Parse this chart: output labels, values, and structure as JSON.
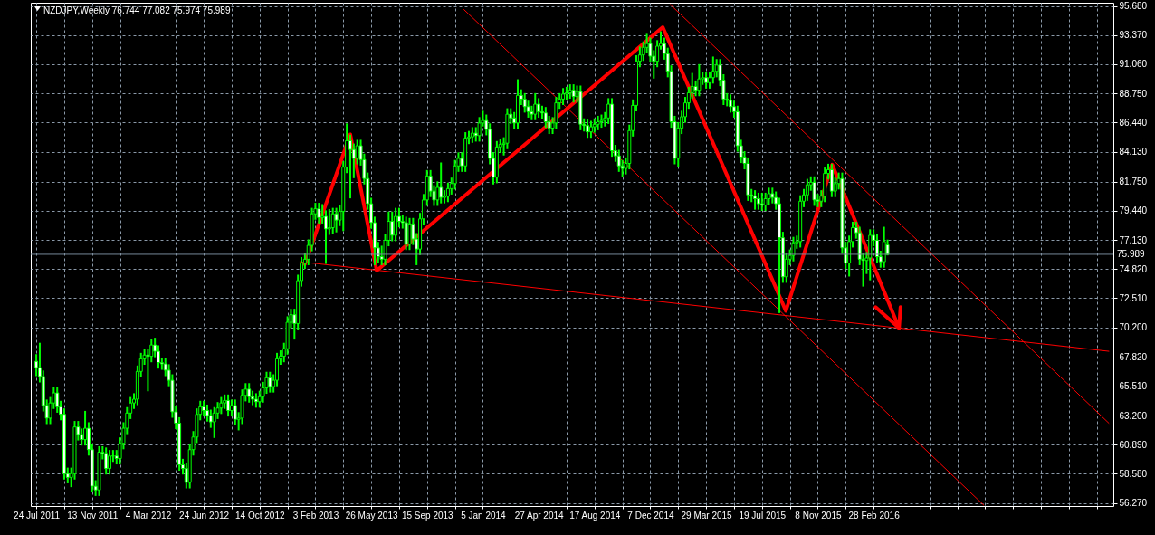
{
  "chart_data": {
    "type": "candlestick",
    "title": "NZDJPY,Weekly 76.744 77.082 75.974 75.989",
    "color": "#00ff00",
    "x": [
      "2011-07-24",
      "2011-07-31",
      "2011-08-07",
      "2011-08-14",
      "2011-08-21",
      "2011-08-28",
      "2011-09-04",
      "2011-09-11",
      "2011-09-18",
      "2011-09-25",
      "2011-10-02",
      "2011-10-09",
      "2011-10-16",
      "2011-10-23",
      "2011-10-30",
      "2011-11-06",
      "2011-11-13",
      "2011-11-20",
      "2011-11-27",
      "2011-12-04",
      "2011-12-11",
      "2011-12-18",
      "2011-12-25",
      "2012-01-01",
      "2012-01-08",
      "2012-01-15",
      "2012-01-22",
      "2012-01-29",
      "2012-02-05",
      "2012-02-12",
      "2012-02-19",
      "2012-02-26",
      "2012-03-04",
      "2012-03-11",
      "2012-03-18",
      "2012-03-25",
      "2012-04-01",
      "2012-04-08",
      "2012-04-15",
      "2012-04-22",
      "2012-04-29",
      "2012-05-06",
      "2012-05-13",
      "2012-05-20",
      "2012-05-27",
      "2012-06-03",
      "2012-06-10",
      "2012-06-17",
      "2012-06-24",
      "2012-07-01",
      "2012-07-08",
      "2012-07-15",
      "2012-07-22",
      "2012-07-29",
      "2012-08-05",
      "2012-08-12",
      "2012-08-19",
      "2012-08-26",
      "2012-09-02",
      "2012-09-09",
      "2012-09-16",
      "2012-09-23",
      "2012-09-30",
      "2012-10-07",
      "2012-10-14",
      "2012-10-21",
      "2012-10-28",
      "2012-11-04",
      "2012-11-11",
      "2012-11-18",
      "2012-11-25",
      "2012-12-02",
      "2012-12-09",
      "2012-12-16",
      "2012-12-23",
      "2012-12-30",
      "2013-01-06",
      "2013-01-13",
      "2013-01-20",
      "2013-01-27",
      "2013-02-03",
      "2013-02-10",
      "2013-02-17",
      "2013-02-24",
      "2013-03-03",
      "2013-03-10",
      "2013-03-17",
      "2013-03-24",
      "2013-03-31",
      "2013-04-07",
      "2013-04-14",
      "2013-04-21",
      "2013-04-28",
      "2013-05-05",
      "2013-05-12",
      "2013-05-19",
      "2013-05-26",
      "2013-06-02",
      "2013-06-09",
      "2013-06-16",
      "2013-06-23",
      "2013-06-30",
      "2013-07-07",
      "2013-07-14",
      "2013-07-21",
      "2013-07-28",
      "2013-08-04",
      "2013-08-11",
      "2013-08-18",
      "2013-08-25",
      "2013-09-01",
      "2013-09-08",
      "2013-09-15",
      "2013-09-22",
      "2013-09-29",
      "2013-10-06",
      "2013-10-13",
      "2013-10-20",
      "2013-10-27",
      "2013-11-03",
      "2013-11-10",
      "2013-11-17",
      "2013-11-24",
      "2013-12-01",
      "2013-12-08",
      "2013-12-15",
      "2013-12-22",
      "2013-12-29",
      "2014-01-05",
      "2014-01-12",
      "2014-01-19",
      "2014-01-26",
      "2014-02-02",
      "2014-02-09",
      "2014-02-16",
      "2014-02-23",
      "2014-03-02",
      "2014-03-09",
      "2014-03-16",
      "2014-03-23",
      "2014-03-30",
      "2014-04-06",
      "2014-04-13",
      "2014-04-20",
      "2014-04-27",
      "2014-05-04",
      "2014-05-11",
      "2014-05-18",
      "2014-05-25",
      "2014-06-01",
      "2014-06-08",
      "2014-06-15",
      "2014-06-22",
      "2014-06-29",
      "2014-07-06",
      "2014-07-13",
      "2014-07-20",
      "2014-07-27",
      "2014-08-03",
      "2014-08-10",
      "2014-08-17",
      "2014-08-24",
      "2014-08-31",
      "2014-09-07",
      "2014-09-14",
      "2014-09-21",
      "2014-09-28",
      "2014-10-05",
      "2014-10-12",
      "2014-10-19",
      "2014-10-26",
      "2014-11-02",
      "2014-11-09",
      "2014-11-16",
      "2014-11-23",
      "2014-11-30",
      "2014-12-07",
      "2014-12-14",
      "2014-12-21",
      "2014-12-28",
      "2015-01-04",
      "2015-01-11",
      "2015-01-18",
      "2015-01-25",
      "2015-02-01",
      "2015-02-08",
      "2015-02-15",
      "2015-02-22",
      "2015-03-01",
      "2015-03-08",
      "2015-03-15",
      "2015-03-22",
      "2015-03-29",
      "2015-04-05",
      "2015-04-12",
      "2015-04-19",
      "2015-04-26",
      "2015-05-03",
      "2015-05-10",
      "2015-05-17",
      "2015-05-24",
      "2015-05-31",
      "2015-06-07",
      "2015-06-14",
      "2015-06-21",
      "2015-06-28",
      "2015-07-05",
      "2015-07-12",
      "2015-07-19",
      "2015-07-26",
      "2015-08-02",
      "2015-08-09",
      "2015-08-16",
      "2015-08-23",
      "2015-08-30",
      "2015-09-06",
      "2015-09-13",
      "2015-09-20",
      "2015-09-27",
      "2015-10-04",
      "2015-10-11",
      "2015-10-18",
      "2015-10-25",
      "2015-11-01",
      "2015-11-08",
      "2015-11-15",
      "2015-11-22",
      "2015-11-29",
      "2015-12-06",
      "2015-12-13",
      "2015-12-20",
      "2015-12-27",
      "2016-01-03",
      "2016-01-10",
      "2016-01-17",
      "2016-01-24",
      "2016-01-31",
      "2016-02-07",
      "2016-02-14",
      "2016-02-21",
      "2016-02-28",
      "2016-03-06",
      "2016-03-13",
      "2016-03-20",
      "2016-03-27"
    ],
    "ohlc": [
      [
        67.5,
        68.0,
        66.4,
        67.0
      ],
      [
        67.0,
        68.9,
        65.9,
        66.3
      ],
      [
        66.3,
        66.7,
        63.6,
        64.0
      ],
      [
        64.0,
        64.4,
        62.6,
        63.0
      ],
      [
        63.0,
        64.6,
        62.6,
        64.2
      ],
      [
        64.2,
        65.4,
        63.8,
        65.0
      ],
      [
        65.0,
        65.4,
        63.5,
        63.9
      ],
      [
        63.9,
        64.3,
        62.9,
        63.3
      ],
      [
        63.3,
        63.7,
        58.2,
        58.6
      ],
      [
        58.6,
        59.0,
        57.9,
        58.3
      ],
      [
        58.3,
        59.0,
        57.6,
        58.6
      ],
      [
        58.6,
        62.7,
        58.2,
        62.3
      ],
      [
        62.3,
        62.7,
        61.3,
        61.7
      ],
      [
        61.7,
        62.1,
        60.9,
        61.3
      ],
      [
        61.3,
        63.5,
        60.9,
        62.2
      ],
      [
        62.2,
        62.6,
        60.1,
        60.5
      ],
      [
        60.5,
        60.9,
        57.2,
        57.6
      ],
      [
        57.6,
        58.0,
        56.9,
        57.3
      ],
      [
        57.3,
        60.7,
        56.9,
        60.3
      ],
      [
        60.3,
        60.7,
        59.8,
        60.2
      ],
      [
        60.2,
        60.6,
        58.6,
        59.0
      ],
      [
        59.0,
        60.4,
        58.6,
        60.0
      ],
      [
        60.0,
        60.4,
        59.6,
        60.0
      ],
      [
        60.0,
        60.4,
        59.4,
        59.8
      ],
      [
        59.8,
        61.4,
        59.4,
        61.0
      ],
      [
        61.0,
        62.6,
        60.6,
        62.2
      ],
      [
        62.2,
        63.8,
        61.8,
        63.4
      ],
      [
        63.4,
        64.6,
        63.0,
        64.2
      ],
      [
        64.2,
        64.9,
        63.8,
        64.5
      ],
      [
        64.5,
        67.1,
        64.1,
        66.7
      ],
      [
        66.7,
        68.1,
        66.3,
        67.7
      ],
      [
        67.7,
        68.4,
        67.3,
        68.0
      ],
      [
        68.0,
        68.4,
        65.2,
        67.9
      ],
      [
        67.9,
        69.2,
        67.5,
        68.8
      ],
      [
        68.8,
        69.3,
        67.9,
        68.3
      ],
      [
        68.3,
        68.7,
        67.0,
        67.4
      ],
      [
        67.4,
        67.7,
        66.9,
        67.3
      ],
      [
        67.3,
        67.7,
        66.4,
        66.8
      ],
      [
        66.8,
        67.2,
        65.6,
        66.0
      ],
      [
        66.0,
        66.4,
        63.1,
        63.5
      ],
      [
        63.5,
        63.9,
        62.2,
        62.6
      ],
      [
        62.6,
        63.0,
        58.9,
        59.3
      ],
      [
        59.3,
        59.7,
        58.6,
        59.0
      ],
      [
        59.0,
        59.4,
        57.5,
        57.9
      ],
      [
        57.9,
        60.9,
        57.5,
        60.5
      ],
      [
        60.5,
        61.9,
        60.1,
        61.5
      ],
      [
        61.5,
        63.7,
        61.1,
        63.3
      ],
      [
        63.3,
        64.3,
        62.9,
        63.9
      ],
      [
        63.9,
        64.3,
        63.2,
        63.6
      ],
      [
        63.6,
        64.0,
        62.8,
        63.2
      ],
      [
        63.2,
        63.6,
        62.3,
        62.7
      ],
      [
        62.7,
        63.8,
        61.5,
        63.4
      ],
      [
        63.4,
        64.2,
        63.0,
        63.8
      ],
      [
        63.8,
        64.6,
        63.4,
        64.2
      ],
      [
        64.2,
        64.8,
        63.8,
        64.4
      ],
      [
        64.4,
        64.8,
        63.2,
        63.6
      ],
      [
        63.6,
        64.4,
        63.2,
        64.0
      ],
      [
        64.0,
        64.4,
        62.5,
        62.9
      ],
      [
        62.9,
        63.4,
        62.1,
        63.0
      ],
      [
        63.0,
        65.2,
        62.6,
        64.8
      ],
      [
        64.8,
        65.7,
        64.4,
        65.3
      ],
      [
        65.3,
        65.7,
        64.3,
        64.7
      ],
      [
        64.7,
        65.1,
        64.1,
        64.5
      ],
      [
        64.5,
        64.9,
        63.9,
        64.3
      ],
      [
        64.3,
        65.1,
        63.9,
        64.7
      ],
      [
        64.7,
        65.8,
        64.3,
        65.4
      ],
      [
        65.4,
        66.6,
        65.0,
        66.2
      ],
      [
        66.2,
        66.6,
        65.1,
        65.5
      ],
      [
        65.5,
        66.4,
        65.1,
        66.0
      ],
      [
        66.0,
        68.1,
        65.6,
        67.7
      ],
      [
        67.7,
        68.3,
        67.3,
        67.9
      ],
      [
        67.9,
        68.9,
        67.5,
        68.5
      ],
      [
        68.5,
        71.0,
        68.1,
        70.6
      ],
      [
        70.6,
        71.6,
        70.2,
        71.2
      ],
      [
        71.2,
        71.6,
        69.3,
        70.5
      ],
      [
        70.5,
        74.3,
        70.1,
        73.9
      ],
      [
        73.9,
        75.7,
        73.5,
        75.3
      ],
      [
        75.3,
        76.0,
        74.9,
        75.6
      ],
      [
        75.6,
        77.1,
        75.2,
        76.7
      ],
      [
        76.7,
        79.6,
        76.3,
        79.2
      ],
      [
        79.2,
        80.0,
        78.8,
        79.6
      ],
      [
        79.6,
        80.0,
        78.5,
        78.9
      ],
      [
        78.9,
        79.9,
        78.5,
        79.0
      ],
      [
        79.0,
        79.4,
        75.3,
        78.0
      ],
      [
        78.0,
        79.5,
        77.6,
        78.1
      ],
      [
        78.1,
        79.6,
        77.7,
        79.2
      ],
      [
        79.2,
        79.6,
        77.8,
        78.7
      ],
      [
        78.7,
        79.8,
        78.3,
        79.4
      ],
      [
        79.4,
        83.3,
        77.9,
        82.9
      ],
      [
        82.9,
        86.3,
        82.5,
        85.0
      ],
      [
        85.0,
        85.4,
        80.5,
        84.3
      ],
      [
        84.3,
        84.7,
        82.1,
        83.6
      ],
      [
        83.6,
        85.0,
        83.2,
        84.6
      ],
      [
        84.6,
        85.0,
        83.1,
        83.5
      ],
      [
        83.5,
        83.9,
        81.6,
        82.0
      ],
      [
        82.0,
        82.4,
        79.6,
        80.0
      ],
      [
        80.0,
        80.4,
        78.1,
        78.5
      ],
      [
        78.5,
        78.9,
        75.2,
        76.5
      ],
      [
        76.5,
        76.9,
        75.4,
        75.8
      ],
      [
        75.8,
        76.6,
        75.2,
        75.6
      ],
      [
        75.6,
        77.5,
        75.2,
        77.1
      ],
      [
        77.1,
        79.3,
        76.7,
        78.6
      ],
      [
        78.6,
        79.3,
        77.1,
        77.5
      ],
      [
        77.5,
        79.6,
        77.1,
        79.0
      ],
      [
        79.0,
        79.6,
        78.2,
        78.6
      ],
      [
        78.6,
        79.0,
        78.1,
        78.5
      ],
      [
        78.5,
        78.9,
        76.4,
        76.8
      ],
      [
        76.8,
        78.8,
        76.4,
        78.4
      ],
      [
        78.4,
        78.8,
        76.8,
        77.2
      ],
      [
        77.2,
        77.6,
        75.2,
        76.4
      ],
      [
        76.4,
        79.2,
        76.0,
        78.8
      ],
      [
        78.8,
        80.7,
        78.4,
        80.3
      ],
      [
        80.3,
        82.6,
        79.9,
        82.2
      ],
      [
        82.2,
        82.6,
        80.6,
        81.0
      ],
      [
        81.0,
        81.4,
        79.9,
        80.3
      ],
      [
        80.3,
        81.7,
        79.9,
        81.3
      ],
      [
        81.3,
        83.2,
        80.1,
        80.5
      ],
      [
        80.5,
        81.0,
        80.1,
        80.6
      ],
      [
        80.6,
        81.6,
        80.2,
        81.2
      ],
      [
        81.2,
        82.0,
        80.8,
        81.6
      ],
      [
        81.6,
        83.4,
        81.2,
        83.0
      ],
      [
        83.0,
        84.0,
        82.6,
        83.6
      ],
      [
        83.6,
        84.0,
        82.6,
        83.0
      ],
      [
        83.0,
        85.6,
        82.6,
        85.2
      ],
      [
        85.2,
        85.7,
        84.8,
        85.3
      ],
      [
        85.3,
        86.0,
        84.9,
        85.6
      ],
      [
        85.6,
        86.0,
        85.0,
        85.4
      ],
      [
        85.4,
        86.8,
        85.0,
        86.4
      ],
      [
        86.4,
        87.3,
        86.2,
        86.6
      ],
      [
        86.6,
        87.0,
        85.5,
        85.9
      ],
      [
        85.9,
        86.3,
        83.2,
        83.6
      ],
      [
        83.6,
        84.0,
        81.6,
        82.1
      ],
      [
        82.1,
        84.9,
        81.7,
        84.5
      ],
      [
        84.5,
        85.1,
        84.1,
        84.7
      ],
      [
        84.7,
        85.2,
        83.9,
        84.8
      ],
      [
        84.8,
        87.5,
        84.4,
        87.1
      ],
      [
        87.1,
        87.5,
        86.4,
        86.8
      ],
      [
        86.8,
        87.2,
        86.0,
        86.4
      ],
      [
        86.4,
        89.8,
        86.0,
        88.6
      ],
      [
        88.6,
        89.0,
        87.9,
        88.3
      ],
      [
        88.3,
        88.7,
        87.3,
        87.7
      ],
      [
        87.7,
        88.1,
        86.9,
        87.3
      ],
      [
        87.3,
        87.7,
        86.7,
        87.1
      ],
      [
        87.1,
        88.7,
        86.7,
        87.9
      ],
      [
        87.9,
        88.3,
        86.9,
        87.3
      ],
      [
        87.3,
        87.7,
        86.8,
        87.2
      ],
      [
        87.2,
        87.6,
        86.1,
        86.5
      ],
      [
        86.5,
        86.9,
        85.6,
        86.0
      ],
      [
        86.0,
        86.8,
        85.6,
        86.4
      ],
      [
        86.4,
        88.4,
        86.0,
        88.0
      ],
      [
        88.0,
        88.7,
        87.6,
        88.3
      ],
      [
        88.3,
        89.1,
        87.9,
        88.7
      ],
      [
        88.7,
        89.2,
        88.3,
        88.8
      ],
      [
        88.8,
        89.4,
        88.4,
        89.0
      ],
      [
        89.0,
        89.4,
        88.1,
        88.5
      ],
      [
        88.5,
        89.3,
        88.1,
        88.9
      ],
      [
        88.9,
        89.3,
        85.9,
        86.3
      ],
      [
        86.3,
        86.7,
        85.8,
        86.2
      ],
      [
        86.2,
        86.6,
        85.3,
        85.7
      ],
      [
        85.7,
        86.5,
        85.3,
        86.1
      ],
      [
        86.1,
        86.7,
        85.7,
        86.3
      ],
      [
        86.3,
        86.9,
        85.9,
        86.5
      ],
      [
        86.5,
        87.0,
        86.1,
        86.6
      ],
      [
        86.6,
        87.2,
        86.2,
        86.8
      ],
      [
        86.8,
        88.3,
        86.4,
        87.9
      ],
      [
        87.9,
        88.3,
        83.8,
        84.2
      ],
      [
        84.2,
        84.6,
        83.4,
        83.8
      ],
      [
        83.8,
        84.2,
        82.6,
        83.0
      ],
      [
        83.0,
        83.4,
        82.2,
        82.8
      ],
      [
        82.8,
        83.6,
        82.4,
        83.2
      ],
      [
        83.2,
        86.2,
        82.8,
        85.8
      ],
      [
        85.8,
        88.2,
        85.4,
        87.8
      ],
      [
        87.8,
        91.7,
        87.4,
        91.3
      ],
      [
        91.3,
        92.4,
        90.9,
        91.8
      ],
      [
        91.8,
        92.8,
        91.4,
        92.4
      ],
      [
        92.4,
        93.4,
        92.0,
        92.7
      ],
      [
        92.7,
        93.1,
        91.3,
        91.7
      ],
      [
        91.7,
        92.1,
        90.0,
        91.3
      ],
      [
        91.3,
        92.9,
        90.9,
        92.5
      ],
      [
        92.5,
        93.6,
        92.3,
        92.7
      ],
      [
        92.7,
        93.1,
        91.5,
        91.9
      ],
      [
        91.9,
        92.3,
        90.1,
        90.5
      ],
      [
        90.5,
        90.9,
        86.1,
        86.5
      ],
      [
        86.5,
        86.9,
        83.2,
        83.6
      ],
      [
        83.6,
        86.4,
        83.0,
        86.0
      ],
      [
        86.0,
        87.3,
        85.6,
        86.9
      ],
      [
        86.9,
        88.4,
        86.5,
        88.0
      ],
      [
        88.0,
        89.2,
        87.6,
        88.8
      ],
      [
        88.8,
        90.3,
        88.4,
        89.3
      ],
      [
        89.3,
        89.7,
        88.6,
        89.0
      ],
      [
        89.0,
        91.0,
        88.6,
        89.9
      ],
      [
        89.9,
        90.4,
        89.5,
        90.0
      ],
      [
        90.0,
        90.4,
        89.2,
        89.6
      ],
      [
        89.6,
        90.4,
        89.2,
        90.0
      ],
      [
        90.0,
        91.6,
        89.6,
        90.5
      ],
      [
        90.5,
        91.4,
        90.1,
        91.0
      ],
      [
        91.0,
        91.4,
        89.4,
        89.8
      ],
      [
        89.8,
        90.2,
        87.9,
        88.3
      ],
      [
        88.3,
        88.7,
        87.8,
        88.2
      ],
      [
        88.2,
        88.6,
        87.3,
        87.7
      ],
      [
        87.7,
        88.1,
        86.9,
        87.3
      ],
      [
        87.3,
        87.7,
        84.2,
        84.6
      ],
      [
        84.6,
        85.0,
        83.3,
        83.7
      ],
      [
        83.7,
        84.1,
        82.8,
        83.2
      ],
      [
        83.2,
        83.6,
        80.3,
        80.7
      ],
      [
        80.7,
        81.1,
        80.2,
        80.6
      ],
      [
        80.6,
        81.0,
        79.6,
        80.4
      ],
      [
        80.4,
        80.8,
        79.6,
        80.0
      ],
      [
        80.0,
        80.8,
        79.5,
        79.9
      ],
      [
        79.9,
        80.8,
        79.5,
        80.4
      ],
      [
        80.4,
        81.2,
        80.0,
        80.8
      ],
      [
        80.8,
        81.2,
        80.1,
        80.5
      ],
      [
        80.5,
        80.9,
        79.6,
        80.0
      ],
      [
        80.0,
        80.4,
        71.4,
        77.3
      ],
      [
        77.3,
        77.7,
        73.8,
        74.2
      ],
      [
        74.2,
        76.0,
        73.8,
        75.6
      ],
      [
        75.6,
        76.3,
        75.2,
        75.9
      ],
      [
        75.9,
        77.3,
        75.5,
        76.9
      ],
      [
        76.9,
        77.4,
        76.5,
        77.0
      ],
      [
        77.0,
        80.6,
        76.6,
        80.2
      ],
      [
        80.2,
        81.1,
        79.8,
        80.7
      ],
      [
        80.7,
        81.9,
        80.3,
        81.5
      ],
      [
        81.5,
        82.1,
        81.1,
        81.7
      ],
      [
        81.7,
        82.1,
        79.9,
        80.3
      ],
      [
        80.3,
        80.7,
        79.8,
        80.2
      ],
      [
        80.2,
        81.0,
        79.8,
        80.6
      ],
      [
        80.6,
        82.8,
        80.2,
        82.4
      ],
      [
        82.4,
        83.1,
        82.0,
        82.7
      ],
      [
        82.7,
        83.1,
        80.6,
        81.0
      ],
      [
        81.0,
        82.0,
        80.6,
        81.6
      ],
      [
        81.6,
        82.4,
        81.2,
        82.0
      ],
      [
        82.0,
        82.4,
        76.1,
        76.5
      ],
      [
        76.5,
        76.9,
        74.9,
        75.3
      ],
      [
        75.3,
        77.4,
        74.3,
        77.0
      ],
      [
        77.0,
        78.5,
        76.6,
        78.1
      ],
      [
        78.1,
        78.5,
        77.3,
        77.7
      ],
      [
        77.7,
        78.1,
        75.2,
        75.6
      ],
      [
        75.6,
        76.0,
        73.5,
        75.5
      ],
      [
        75.5,
        76.1,
        74.5,
        75.7
      ],
      [
        75.7,
        77.9,
        74.0,
        77.5
      ],
      [
        77.5,
        77.9,
        76.7,
        77.1
      ],
      [
        77.1,
        77.5,
        75.4,
        75.8
      ],
      [
        75.8,
        76.2,
        75.0,
        75.4
      ],
      [
        75.4,
        78.1,
        75.0,
        77.0
      ],
      [
        76.744,
        77.082,
        75.974,
        75.989
      ]
    ],
    "series": [
      {
        "type": "line",
        "color": "#ff0000",
        "x": [
          "2013-01-03",
          "2017-06-14"
        ],
        "values": [
          75.4,
          68.3
        ]
      },
      {
        "type": "line",
        "color": "#ff0000",
        "x": [
          "2013-11-28",
          "2016-10-06"
        ],
        "values": [
          95.4,
          56.1
        ]
      },
      {
        "type": "line",
        "color": "#ff0000",
        "x": [
          "2015-01-16",
          "2017-06-14"
        ],
        "values": [
          95.8,
          62.6
        ]
      },
      {
        "type": "line",
        "color": "#ff0000",
        "x": [
          "2013-01-13",
          "2013-04-14",
          "2013-06-06",
          "2015-01-01",
          "2015-09-05",
          "2015-12-07",
          "2016-04-19"
        ],
        "values": [
          75.2,
          85.5,
          74.7,
          94.0,
          71.5,
          83.1,
          70.15
        ]
      },
      {
        "type": "line",
        "color": "#ff0000",
        "x": [
          "2016-03-03",
          "2016-04-19",
          "2016-04-22"
        ],
        "values": [
          71.8,
          70.15,
          71.8
        ]
      }
    ],
    "ref_lines": [
      {
        "axis": "y",
        "value": 75.989,
        "label": "75.989",
        "color": "#778899"
      }
    ],
    "xlim": [
      "2011-07-22",
      "2017-06-14"
    ],
    "ylim": [
      56.03,
      95.94
    ],
    "xticks": [
      {
        "value": "2011-07-24",
        "label": "24 Jul 2011"
      },
      {
        "value": "2011-09-18",
        "label": null
      },
      {
        "value": "2011-11-13",
        "label": "13 Nov 2011"
      },
      {
        "value": "2012-01-08",
        "label": null
      },
      {
        "value": "2012-03-04",
        "label": "4 Mar 2012"
      },
      {
        "value": "2012-04-29",
        "label": null
      },
      {
        "value": "2012-06-24",
        "label": "24 Jun 2012"
      },
      {
        "value": "2012-08-19",
        "label": null
      },
      {
        "value": "2012-10-14",
        "label": "14 Oct 2012"
      },
      {
        "value": "2012-12-09",
        "label": null
      },
      {
        "value": "2013-02-03",
        "label": "3 Feb 2013"
      },
      {
        "value": "2013-03-31",
        "label": null
      },
      {
        "value": "2013-05-26",
        "label": "26 May 2013"
      },
      {
        "value": "2013-07-21",
        "label": null
      },
      {
        "value": "2013-09-15",
        "label": "15 Sep 2013"
      },
      {
        "value": "2013-11-10",
        "label": null
      },
      {
        "value": "2014-01-05",
        "label": "5 Jan 2014"
      },
      {
        "value": "2014-03-02",
        "label": null
      },
      {
        "value": "2014-04-27",
        "label": "27 Apr 2014"
      },
      {
        "value": "2014-06-22",
        "label": null
      },
      {
        "value": "2014-08-17",
        "label": "17 Aug 2014"
      },
      {
        "value": "2014-10-12",
        "label": null
      },
      {
        "value": "2014-12-07",
        "label": "7 Dec 2014"
      },
      {
        "value": "2015-02-01",
        "label": null
      },
      {
        "value": "2015-03-29",
        "label": "29 Mar 2015"
      },
      {
        "value": "2015-05-24",
        "label": null
      },
      {
        "value": "2015-07-19",
        "label": "19 Jul 2015"
      },
      {
        "value": "2015-09-13",
        "label": null
      },
      {
        "value": "2015-11-08",
        "label": "8 Nov 2015"
      },
      {
        "value": "2016-01-03",
        "label": null
      },
      {
        "value": "2016-02-28",
        "label": "28 Feb 2016"
      },
      {
        "value": "2016-04-24",
        "label": null
      },
      {
        "value": "2016-06-19",
        "label": null
      },
      {
        "value": "2016-08-14",
        "label": null
      },
      {
        "value": "2016-10-09",
        "label": null
      },
      {
        "value": "2016-12-04",
        "label": null
      },
      {
        "value": "2017-01-29",
        "label": null
      },
      {
        "value": "2017-03-26",
        "label": null
      },
      {
        "value": "2017-05-21",
        "label": null
      }
    ],
    "yticks": [
      {
        "value": 95.68,
        "label": "95.680"
      },
      {
        "value": 93.37,
        "label": "93.370"
      },
      {
        "value": 91.06,
        "label": "91.060"
      },
      {
        "value": 88.75,
        "label": "88.750"
      },
      {
        "value": 86.44,
        "label": "86.440"
      },
      {
        "value": 84.13,
        "label": "84.130"
      },
      {
        "value": 81.75,
        "label": "81.750"
      },
      {
        "value": 79.44,
        "label": "79.440"
      },
      {
        "value": 77.13,
        "label": "77.130"
      },
      {
        "value": 74.82,
        "label": "74.820"
      },
      {
        "value": 72.51,
        "label": "72.510"
      },
      {
        "value": 70.2,
        "label": "70.200"
      },
      {
        "value": 67.82,
        "label": "67.820"
      },
      {
        "value": 65.51,
        "label": "65.510"
      },
      {
        "value": 63.2,
        "label": "63.200"
      },
      {
        "value": 60.89,
        "label": "60.890"
      },
      {
        "value": 58.58,
        "label": "58.580"
      },
      {
        "value": 56.27,
        "label": "56.270"
      }
    ],
    "grid": true
  }
}
